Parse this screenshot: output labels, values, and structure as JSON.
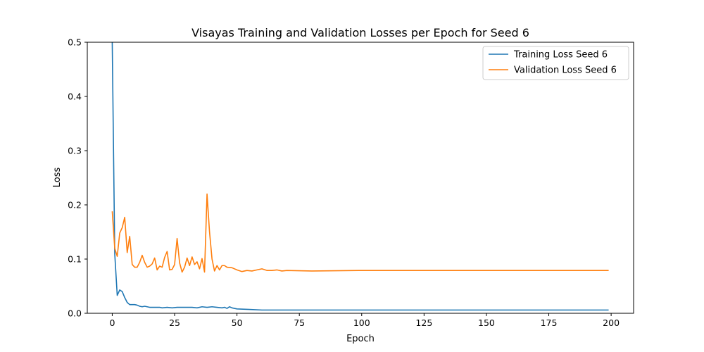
{
  "chart_data": {
    "type": "line",
    "title": "Visayas Training and Validation Losses per Epoch for Seed 6",
    "xlabel": "Epoch",
    "ylabel": "Loss",
    "xlim": [
      -10,
      209
    ],
    "ylim": [
      0,
      0.5
    ],
    "xticks": [
      0,
      25,
      50,
      75,
      100,
      125,
      150,
      175,
      200
    ],
    "yticks": [
      0.0,
      0.1,
      0.2,
      0.3,
      0.4,
      0.5
    ],
    "xtick_labels": [
      "0",
      "25",
      "50",
      "75",
      "100",
      "125",
      "150",
      "175",
      "200"
    ],
    "ytick_labels": [
      "0.0",
      "0.1",
      "0.2",
      "0.3",
      "0.4",
      "0.5"
    ],
    "grid": false,
    "legend_position": "top-right",
    "series": [
      {
        "name": "Training Loss Seed 6",
        "color": "#1f77b4",
        "points": [
          [
            0,
            0.5
          ],
          [
            1,
            0.11
          ],
          [
            2,
            0.033
          ],
          [
            3,
            0.043
          ],
          [
            4,
            0.04
          ],
          [
            5,
            0.029
          ],
          [
            6,
            0.02
          ],
          [
            7,
            0.016
          ],
          [
            8,
            0.016
          ],
          [
            9,
            0.016
          ],
          [
            10,
            0.015
          ],
          [
            11,
            0.013
          ],
          [
            12,
            0.012
          ],
          [
            13,
            0.013
          ],
          [
            14,
            0.012
          ],
          [
            15,
            0.011
          ],
          [
            16,
            0.011
          ],
          [
            17,
            0.011
          ],
          [
            18,
            0.011
          ],
          [
            19,
            0.011
          ],
          [
            20,
            0.01
          ],
          [
            22,
            0.011
          ],
          [
            24,
            0.01
          ],
          [
            26,
            0.011
          ],
          [
            28,
            0.011
          ],
          [
            30,
            0.011
          ],
          [
            32,
            0.011
          ],
          [
            34,
            0.01
          ],
          [
            36,
            0.012
          ],
          [
            38,
            0.011
          ],
          [
            40,
            0.012
          ],
          [
            42,
            0.011
          ],
          [
            44,
            0.01
          ],
          [
            45,
            0.011
          ],
          [
            46,
            0.009
          ],
          [
            47,
            0.012
          ],
          [
            48,
            0.01
          ],
          [
            50,
            0.008
          ],
          [
            55,
            0.007
          ],
          [
            60,
            0.006
          ],
          [
            70,
            0.006
          ],
          [
            80,
            0.006
          ],
          [
            100,
            0.006
          ],
          [
            125,
            0.006
          ],
          [
            150,
            0.006
          ],
          [
            175,
            0.006
          ],
          [
            199,
            0.006
          ]
        ]
      },
      {
        "name": "Validation Loss Seed 6",
        "color": "#ff7f0e",
        "points": [
          [
            0,
            0.188
          ],
          [
            1,
            0.12
          ],
          [
            2,
            0.105
          ],
          [
            3,
            0.148
          ],
          [
            4,
            0.158
          ],
          [
            5,
            0.177
          ],
          [
            6,
            0.112
          ],
          [
            7,
            0.142
          ],
          [
            8,
            0.09
          ],
          [
            9,
            0.085
          ],
          [
            10,
            0.085
          ],
          [
            11,
            0.094
          ],
          [
            12,
            0.107
          ],
          [
            13,
            0.094
          ],
          [
            14,
            0.085
          ],
          [
            15,
            0.087
          ],
          [
            16,
            0.091
          ],
          [
            17,
            0.102
          ],
          [
            18,
            0.08
          ],
          [
            19,
            0.087
          ],
          [
            20,
            0.085
          ],
          [
            21,
            0.103
          ],
          [
            22,
            0.114
          ],
          [
            23,
            0.08
          ],
          [
            24,
            0.081
          ],
          [
            25,
            0.09
          ],
          [
            26,
            0.138
          ],
          [
            27,
            0.093
          ],
          [
            28,
            0.076
          ],
          [
            29,
            0.085
          ],
          [
            30,
            0.102
          ],
          [
            31,
            0.088
          ],
          [
            32,
            0.104
          ],
          [
            33,
            0.09
          ],
          [
            34,
            0.095
          ],
          [
            35,
            0.082
          ],
          [
            36,
            0.101
          ],
          [
            37,
            0.076
          ],
          [
            38,
            0.22
          ],
          [
            39,
            0.15
          ],
          [
            40,
            0.1
          ],
          [
            41,
            0.078
          ],
          [
            42,
            0.088
          ],
          [
            43,
            0.08
          ],
          [
            44,
            0.088
          ],
          [
            45,
            0.088
          ],
          [
            46,
            0.085
          ],
          [
            48,
            0.084
          ],
          [
            50,
            0.08
          ],
          [
            52,
            0.077
          ],
          [
            54,
            0.079
          ],
          [
            56,
            0.078
          ],
          [
            58,
            0.08
          ],
          [
            60,
            0.082
          ],
          [
            62,
            0.079
          ],
          [
            64,
            0.079
          ],
          [
            66,
            0.08
          ],
          [
            68,
            0.078
          ],
          [
            70,
            0.079
          ],
          [
            80,
            0.078
          ],
          [
            100,
            0.079
          ],
          [
            125,
            0.079
          ],
          [
            150,
            0.079
          ],
          [
            175,
            0.079
          ],
          [
            199,
            0.079
          ]
        ]
      }
    ]
  }
}
